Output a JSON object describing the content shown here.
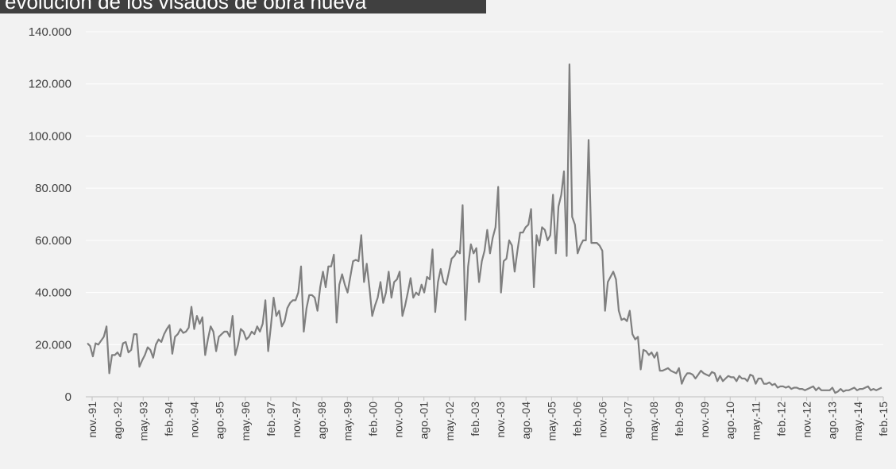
{
  "title": "evolución de los visados de obra nueva",
  "colors": {
    "title_bg": "#404040",
    "background": "#f2f2f2",
    "line": "#7f7f7f",
    "grid": "#ffffff",
    "axis": "#bfbfbf"
  },
  "chart_data": {
    "type": "line",
    "title": "evolución de los visados de obra nueva",
    "xlabel": "",
    "ylabel": "",
    "ylim": [
      0,
      140000
    ],
    "yticks": [
      0,
      20000,
      40000,
      60000,
      80000,
      100000,
      120000,
      140000
    ],
    "ytick_labels": [
      "0",
      "20.000",
      "40.000",
      "60.000",
      "80.000",
      "100.000",
      "120.000",
      "140.000"
    ],
    "xtick_labels": [
      "nov.-91",
      "ago.-92",
      "may.-93",
      "feb.-94",
      "nov.-94",
      "ago.-95",
      "may.-96",
      "feb.-97",
      "nov.-97",
      "ago.-98",
      "may.-99",
      "feb.-00",
      "nov.-00",
      "ago.-01",
      "may.-02",
      "feb.-03",
      "nov.-03",
      "ago.-04",
      "may.-05",
      "feb.-06",
      "nov.-06",
      "ago.-07",
      "may.-08",
      "feb.-09",
      "nov.-09",
      "ago.-10",
      "may.-11",
      "feb.-12",
      "nov.-12",
      "ago.-13",
      "may.-14",
      "feb.-15"
    ],
    "grid": true,
    "legend": "none",
    "series": [
      {
        "x_start": "nov.-91",
        "frequency": "monthly",
        "values": [
          20500,
          19500,
          15500,
          20500,
          20000,
          21500,
          23000,
          27000,
          9000,
          16000,
          16000,
          17000,
          15500,
          20500,
          21000,
          17000,
          18000,
          24000,
          24000,
          11500,
          14000,
          16000,
          19000,
          18000,
          15000,
          20000,
          22000,
          21000,
          24000,
          26000,
          27500,
          16500,
          23000,
          24000,
          26000,
          24500,
          25000,
          26500,
          34500,
          26000,
          31000,
          28000,
          30500,
          16000,
          22000,
          27000,
          25000,
          17500,
          23000,
          24000,
          25000,
          25000,
          23000,
          31000,
          16000,
          20000,
          26000,
          25000,
          22000,
          23000,
          25000,
          24000,
          27000,
          25000,
          28000,
          37000,
          17500,
          27000,
          38000,
          31000,
          33000,
          27000,
          29000,
          34000,
          36000,
          37000,
          37000,
          40000,
          50000,
          25000,
          34000,
          39000,
          39000,
          38000,
          33000,
          42000,
          48000,
          42000,
          50000,
          50000,
          54500,
          28500,
          43000,
          47000,
          43000,
          40000,
          46000,
          52000,
          52500,
          52000,
          62000,
          44000,
          51000,
          41500,
          31000,
          35000,
          38000,
          44000,
          36000,
          40000,
          48000,
          38000,
          44000,
          45000,
          48000,
          31000,
          35000,
          40000,
          45500,
          38000,
          40000,
          39000,
          43000,
          40000,
          46000,
          45000,
          56500,
          32500,
          44000,
          49000,
          44000,
          43000,
          48000,
          53000,
          54000,
          56000,
          55000,
          73500,
          29500,
          50000,
          58500,
          55000,
          57000,
          44000,
          52000,
          56000,
          64000,
          55000,
          61000,
          65000,
          80500,
          40000,
          52000,
          53000,
          60000,
          58000,
          48000,
          56000,
          63000,
          63000,
          65000,
          66000,
          72000,
          42000,
          62000,
          58000,
          65000,
          64000,
          60000,
          62000,
          77500,
          55000,
          73000,
          77500,
          86500,
          54000,
          127500,
          69000,
          66000,
          55000,
          58000,
          60000,
          60000,
          98500,
          59000,
          59000,
          59000,
          58000,
          56000,
          33000,
          44000,
          46000,
          48000,
          45000,
          33000,
          29500,
          30000,
          29000,
          33000,
          24000,
          22000,
          23000,
          10500,
          18000,
          17500,
          16000,
          17000,
          15000,
          17000,
          10000,
          10000,
          10500,
          11000,
          10000,
          9500,
          9000,
          11000,
          5000,
          7500,
          9000,
          9000,
          8500,
          7000,
          8500,
          10000,
          9000,
          8500,
          8000,
          9500,
          9000,
          6000,
          8000,
          6000,
          7000,
          8000,
          7500,
          7500,
          6000,
          8000,
          7000,
          7000,
          6000,
          8500,
          8000,
          5000,
          7000,
          7000,
          5000,
          5000,
          5500,
          4500,
          5000,
          3500,
          4000,
          4000,
          3500,
          4000,
          3000,
          3500,
          3500,
          3000,
          3000,
          2500,
          3000,
          3500,
          4000,
          2500,
          3500,
          2500,
          2500,
          2500,
          2500,
          3500,
          1500,
          2000,
          3000,
          2000,
          2500,
          2500,
          3000,
          3500,
          2500,
          3000,
          3000,
          3500,
          4000,
          2500,
          3000,
          2500,
          3000,
          3500
        ]
      }
    ]
  }
}
